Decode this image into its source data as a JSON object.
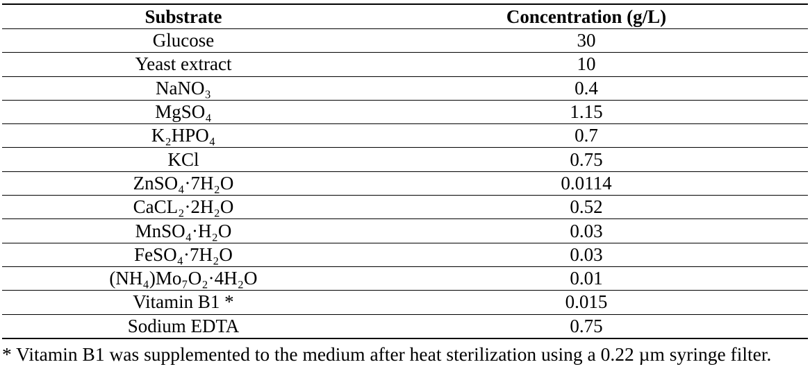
{
  "table": {
    "headers": [
      "Substrate",
      "Concentration (g/L)"
    ],
    "rows": [
      [
        "Glucose",
        "30"
      ],
      [
        "Yeast extract",
        "10"
      ],
      [
        "NaNO₃",
        "0.4"
      ],
      [
        "MgSO₄",
        "1.15"
      ],
      [
        "K₂HPO₄",
        "0.7"
      ],
      [
        "KCl",
        "0.75"
      ],
      [
        "ZnSO₄·7H₂O",
        "0.0114"
      ],
      [
        "CaCL₂·2H₂O",
        "0.52"
      ],
      [
        "MnSO₄·H₂O",
        "0.03"
      ],
      [
        "FeSO₄·7H₂O",
        "0.03"
      ],
      [
        "(NH₄)Mo₇O₂·4H₂O",
        "0.01"
      ],
      [
        "Vitamin B1 *",
        "0.015"
      ],
      [
        "Sodium EDTA",
        "0.75"
      ]
    ]
  },
  "footnote": "* Vitamin B1 was supplemented to the medium after heat sterilization using a 0.22 µm syringe filter."
}
